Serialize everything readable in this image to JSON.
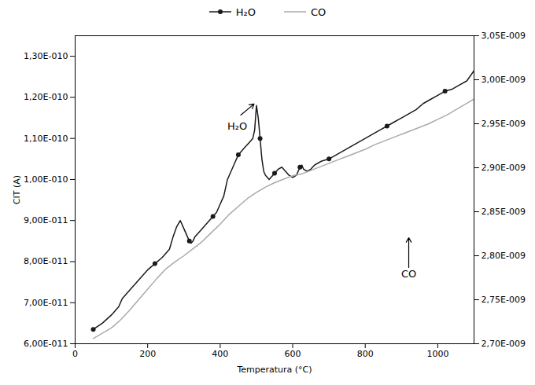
{
  "chart_data": {
    "type": "line",
    "xlabel": "Temperatura (°C)",
    "ylabel": "CIT (A)",
    "xlim": [
      0,
      1100
    ],
    "xticks": [
      0,
      200,
      400,
      600,
      800,
      1000
    ],
    "ylim": [
      6e-11,
      1.35e-10
    ],
    "yticks": [
      {
        "value": 6e-11,
        "label": "6,00E-011"
      },
      {
        "value": 7e-11,
        "label": "7,00E-011"
      },
      {
        "value": 8e-11,
        "label": "8,00E-011"
      },
      {
        "value": 9e-11,
        "label": "9,00E-011"
      },
      {
        "value": 1e-10,
        "label": "1,00E-010"
      },
      {
        "value": 1.1e-10,
        "label": "1,10E-010"
      },
      {
        "value": 1.2e-10,
        "label": "1,20E-010"
      },
      {
        "value": 1.3e-10,
        "label": "1,30E-010"
      }
    ],
    "y2lim": [
      2.7e-09,
      3.05e-09
    ],
    "y2ticks": [
      {
        "value": 2.7e-09,
        "label": "2,70E-009"
      },
      {
        "value": 2.75e-09,
        "label": "2,75E-009"
      },
      {
        "value": 2.8e-09,
        "label": "2,80E-009"
      },
      {
        "value": 2.85e-09,
        "label": "2,85E-009"
      },
      {
        "value": 2.9e-09,
        "label": "2,90E-009"
      },
      {
        "value": 2.95e-09,
        "label": "2,95E-009"
      },
      {
        "value": 3e-09,
        "label": "3,00E-009"
      },
      {
        "value": 3.05e-09,
        "label": "3,05E-009"
      }
    ],
    "grid": false,
    "legend": "top",
    "series": [
      {
        "name": "H₂O",
        "color": "#1a1a1a",
        "marker": "o",
        "x": [
          50,
          75,
          100,
          120,
          130,
          150,
          175,
          200,
          220,
          240,
          260,
          270,
          280,
          290,
          300,
          310,
          315,
          320,
          325,
          330,
          340,
          350,
          360,
          370,
          380,
          390,
          400,
          410,
          415,
          420,
          430,
          440,
          450,
          460,
          470,
          480,
          490,
          495,
          500,
          505,
          510,
          515,
          520,
          525,
          530,
          535,
          540,
          545,
          550,
          555,
          560,
          570,
          580,
          590,
          600,
          610,
          620,
          625,
          630,
          640,
          650,
          660,
          670,
          680,
          700,
          720,
          740,
          760,
          780,
          800,
          820,
          840,
          860,
          880,
          900,
          920,
          940,
          960,
          980,
          1000,
          1020,
          1040,
          1060,
          1080,
          1100
        ],
        "values": [
          6.35e-11,
          6.5e-11,
          6.7e-11,
          6.9e-11,
          7.1e-11,
          7.3e-11,
          7.55e-11,
          7.8e-11,
          7.95e-11,
          8.1e-11,
          8.3e-11,
          8.6e-11,
          8.85e-11,
          9e-11,
          8.8e-11,
          8.6e-11,
          8.5e-11,
          8.45e-11,
          8.5e-11,
          8.6e-11,
          8.7e-11,
          8.8e-11,
          8.9e-11,
          9e-11,
          9.1e-11,
          9.2e-11,
          9.4e-11,
          9.6e-11,
          9.8e-11,
          1e-10,
          1.02e-10,
          1.04e-10,
          1.06e-10,
          1.07e-10,
          1.08e-10,
          1.09e-10,
          1.1e-10,
          1.12e-10,
          1.18e-10,
          1.15e-10,
          1.1e-10,
          1.05e-10,
          1.02e-10,
          1.01e-10,
          1.005e-10,
          1e-10,
          1.005e-10,
          1.01e-10,
          1.015e-10,
          1.02e-10,
          1.025e-10,
          1.03e-10,
          1.02e-10,
          1.01e-10,
          1.005e-10,
          1.01e-10,
          1.03e-10,
          1.035e-10,
          1.025e-10,
          1.02e-10,
          1.025e-10,
          1.035e-10,
          1.04e-10,
          1.045e-10,
          1.05e-10,
          1.06e-10,
          1.07e-10,
          1.08e-10,
          1.09e-10,
          1.1e-10,
          1.11e-10,
          1.12e-10,
          1.13e-10,
          1.14e-10,
          1.15e-10,
          1.16e-10,
          1.17e-10,
          1.185e-10,
          1.195e-10,
          1.205e-10,
          1.215e-10,
          1.22e-10,
          1.23e-10,
          1.24e-10,
          1.265e-10
        ]
      },
      {
        "name": "CO",
        "color": "#aaaaaa",
        "axis": "y2",
        "x": [
          50,
          75,
          100,
          125,
          150,
          175,
          200,
          225,
          250,
          275,
          300,
          325,
          350,
          375,
          400,
          425,
          450,
          475,
          500,
          525,
          550,
          575,
          600,
          625,
          650,
          675,
          700,
          725,
          750,
          775,
          800,
          825,
          850,
          875,
          900,
          925,
          950,
          975,
          1000,
          1025,
          1050,
          1075,
          1100
        ],
        "values": [
          2.706e-09,
          2.712e-09,
          2.718e-09,
          2.727e-09,
          2.738e-09,
          2.75e-09,
          2.762e-09,
          2.774e-09,
          2.785e-09,
          2.793e-09,
          2.8e-09,
          2.808e-09,
          2.816e-09,
          2.826e-09,
          2.836e-09,
          2.847e-09,
          2.856e-09,
          2.865e-09,
          2.872e-09,
          2.878e-09,
          2.883e-09,
          2.887e-09,
          2.891e-09,
          2.893e-09,
          2.897e-09,
          2.901e-09,
          2.905e-09,
          2.909e-09,
          2.913e-09,
          2.917e-09,
          2.921e-09,
          2.926e-09,
          2.93e-09,
          2.934e-09,
          2.938e-09,
          2.942e-09,
          2.946e-09,
          2.95e-09,
          2.955e-09,
          2.96e-09,
          2.966e-09,
          2.972e-09,
          2.978e-09
        ]
      }
    ],
    "annotations": [
      {
        "text": "H₂O",
        "xy": [
          495,
          1.185e-10
        ],
        "xytext": [
          420,
          1.13e-10
        ]
      },
      {
        "text": "CO",
        "xy": [
          920,
          8.6e-11
        ],
        "xytext": [
          920,
          7.8e-11
        ]
      }
    ]
  }
}
